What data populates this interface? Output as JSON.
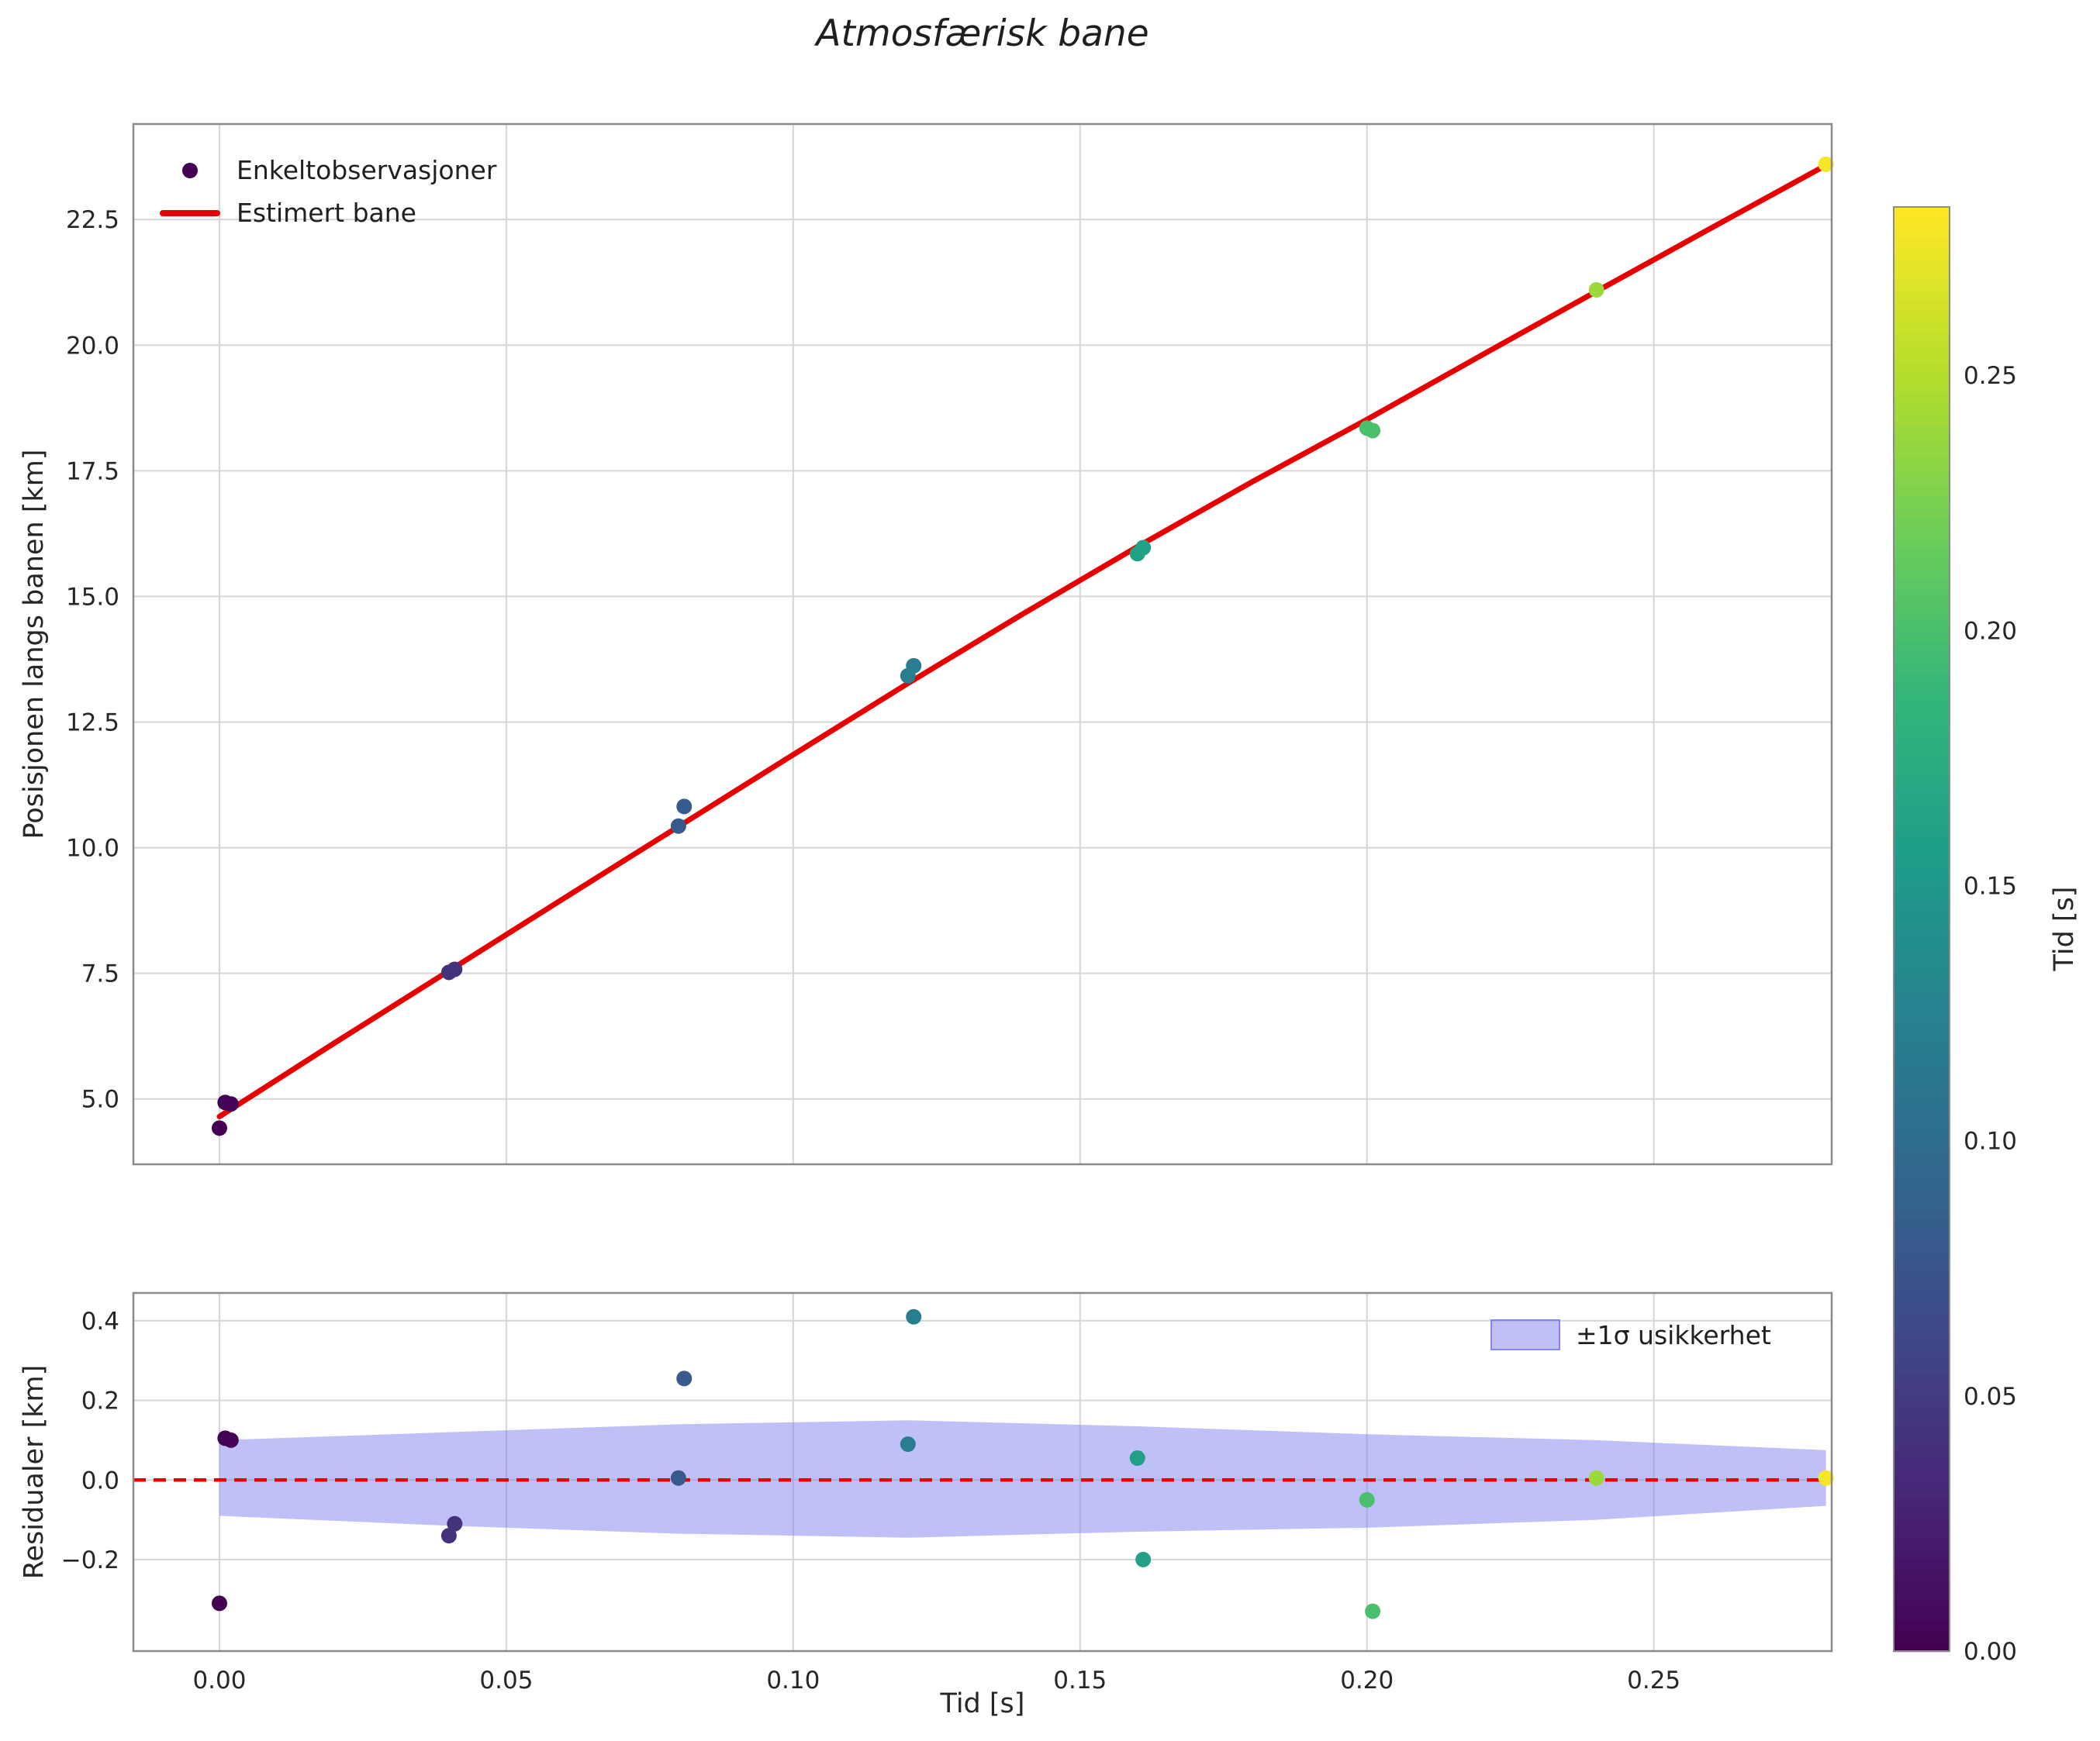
{
  "title": "Atmosfærisk bane",
  "colors": {
    "estimated_line": "#e60000",
    "zero_line": "#e60000",
    "band_fill": "#7b7bf0",
    "band_opacity": 0.48,
    "grid": "#d6d6d6",
    "frame": "#8a8a8a",
    "tick_text": "#262626",
    "label_text": "#262626"
  },
  "colormap": {
    "name": "viridis",
    "stops": [
      "#440154",
      "#482878",
      "#3e4989",
      "#31688e",
      "#26828e",
      "#1f9e89",
      "#35b779",
      "#6ece58",
      "#b5de2b",
      "#fde725"
    ]
  },
  "colorbar": {
    "label": "Tid [s]",
    "min": 0.0,
    "max": 0.283,
    "tick_values": [
      0.0,
      0.05,
      0.1,
      0.15,
      0.2,
      0.25
    ],
    "tick_labels": [
      "0.00",
      "0.05",
      "0.10",
      "0.15",
      "0.20",
      "0.25"
    ]
  },
  "chart_data": [
    {
      "id": "trajectory",
      "type": "scatter",
      "title": "Atmosfærisk bane",
      "xlabel": "",
      "ylabel": "Posisjonen langs banen [km]",
      "xlim": [
        -0.015,
        0.281
      ],
      "ylim": [
        3.7,
        24.4
      ],
      "grid": true,
      "xtick_values": [
        0.0,
        0.05,
        0.1,
        0.15,
        0.2,
        0.25
      ],
      "ytick_values": [
        5.0,
        7.5,
        10.0,
        12.5,
        15.0,
        17.5,
        20.0,
        22.5
      ],
      "ytick_labels": [
        "5.0",
        "7.5",
        "10.0",
        "12.5",
        "15.0",
        "17.5",
        "20.0",
        "22.5"
      ],
      "legend": {
        "position": "upper-left",
        "entries": [
          "Enkeltobservasjoner",
          "Estimert bane"
        ]
      },
      "series": [
        {
          "name": "Enkeltobservasjoner",
          "type": "scatter",
          "color_by": "Tid [s]",
          "points": [
            [
              0.0,
              4.42
            ],
            [
              0.001,
              4.93
            ],
            [
              0.002,
              4.9
            ],
            [
              0.04,
              7.52
            ],
            [
              0.041,
              7.58
            ],
            [
              0.08,
              10.43
            ],
            [
              0.081,
              10.82
            ],
            [
              0.12,
              13.42
            ],
            [
              0.121,
              13.62
            ],
            [
              0.16,
              15.85
            ],
            [
              0.161,
              15.97
            ],
            [
              0.2,
              18.35
            ],
            [
              0.201,
              18.3
            ],
            [
              0.24,
              21.1
            ],
            [
              0.28,
              23.6
            ]
          ]
        },
        {
          "name": "Estimert bane",
          "type": "line",
          "x": [
            0.0,
            0.02,
            0.04,
            0.06,
            0.08,
            0.1,
            0.12,
            0.14,
            0.16,
            0.18,
            0.2,
            0.22,
            0.24,
            0.26,
            0.28
          ],
          "y": [
            4.65,
            6.11,
            7.55,
            8.99,
            10.42,
            11.85,
            13.27,
            14.65,
            15.99,
            17.28,
            18.52,
            19.8,
            21.07,
            22.33,
            23.58
          ]
        }
      ]
    },
    {
      "id": "residuals",
      "type": "scatter",
      "xlabel": "Tid [s]",
      "ylabel": "Residualer [km]",
      "xlim": [
        -0.015,
        0.281
      ],
      "ylim": [
        -0.43,
        0.47
      ],
      "grid": true,
      "xtick_values": [
        0.0,
        0.05,
        0.1,
        0.15,
        0.2,
        0.25
      ],
      "xtick_labels": [
        "0.00",
        "0.05",
        "0.10",
        "0.15",
        "0.20",
        "0.25"
      ],
      "ytick_values": [
        -0.2,
        0.0,
        0.2,
        0.4
      ],
      "ytick_labels": [
        "−0.2",
        "0.0",
        "0.2",
        "0.4"
      ],
      "zero_line": 0.0,
      "legend": {
        "position": "upper-right",
        "entries": [
          "±1σ usikkerhet"
        ]
      },
      "band": {
        "x": [
          0.0,
          0.04,
          0.08,
          0.12,
          0.16,
          0.2,
          0.24,
          0.28
        ],
        "upper": [
          0.1,
          0.12,
          0.14,
          0.15,
          0.135,
          0.115,
          0.1,
          0.075
        ],
        "lower": [
          -0.09,
          -0.115,
          -0.135,
          -0.145,
          -0.13,
          -0.12,
          -0.1,
          -0.065
        ]
      },
      "points": [
        [
          0.0,
          -0.31
        ],
        [
          0.001,
          0.105
        ],
        [
          0.002,
          0.1
        ],
        [
          0.04,
          -0.14
        ],
        [
          0.041,
          -0.11
        ],
        [
          0.08,
          0.005
        ],
        [
          0.081,
          0.255
        ],
        [
          0.12,
          0.09
        ],
        [
          0.121,
          0.41
        ],
        [
          0.16,
          0.055
        ],
        [
          0.161,
          -0.2
        ],
        [
          0.2,
          -0.05
        ],
        [
          0.201,
          -0.33
        ],
        [
          0.24,
          0.005
        ],
        [
          0.28,
          0.005
        ]
      ]
    }
  ]
}
